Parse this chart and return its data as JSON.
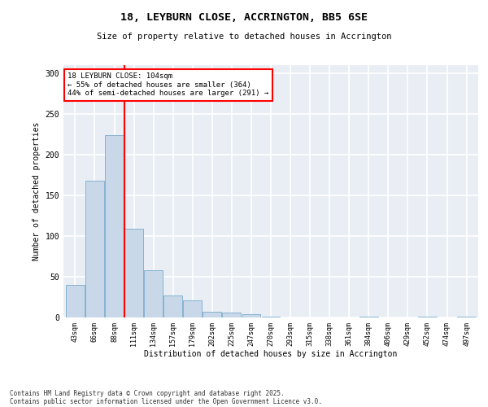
{
  "title1": "18, LEYBURN CLOSE, ACCRINGTON, BB5 6SE",
  "title2": "Size of property relative to detached houses in Accrington",
  "xlabel": "Distribution of detached houses by size in Accrington",
  "ylabel": "Number of detached properties",
  "categories": [
    "43sqm",
    "66sqm",
    "88sqm",
    "111sqm",
    "134sqm",
    "157sqm",
    "179sqm",
    "202sqm",
    "225sqm",
    "247sqm",
    "270sqm",
    "293sqm",
    "315sqm",
    "338sqm",
    "361sqm",
    "384sqm",
    "406sqm",
    "429sqm",
    "452sqm",
    "474sqm",
    "497sqm"
  ],
  "values": [
    40,
    168,
    224,
    109,
    58,
    27,
    21,
    7,
    6,
    4,
    1,
    0,
    0,
    0,
    0,
    1,
    0,
    0,
    1,
    0,
    1
  ],
  "bar_color": "#c8d8e8",
  "bar_edge_color": "#7aabcc",
  "vline_color": "red",
  "annotation_text": "18 LEYBURN CLOSE: 104sqm\n← 55% of detached houses are smaller (364)\n44% of semi-detached houses are larger (291) →",
  "annotation_box_color": "white",
  "annotation_box_edge_color": "red",
  "ylim": [
    0,
    310
  ],
  "yticks": [
    0,
    50,
    100,
    150,
    200,
    250,
    300
  ],
  "background_color": "#e8eef4",
  "grid_color": "white",
  "footer1": "Contains HM Land Registry data © Crown copyright and database right 2025.",
  "footer2": "Contains public sector information licensed under the Open Government Licence v3.0."
}
